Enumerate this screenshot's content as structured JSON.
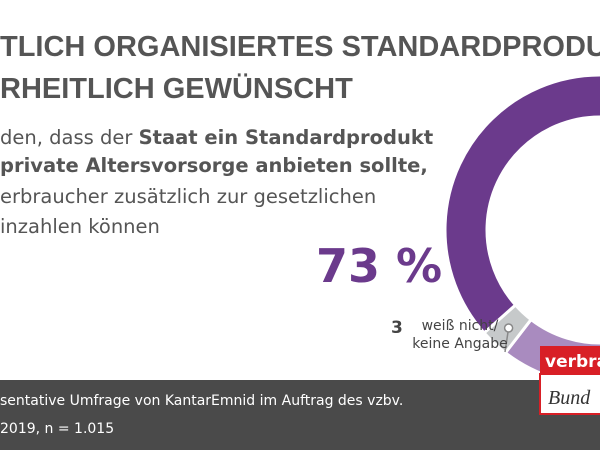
{
  "header": {
    "title": [
      "TLICH ORGANISIERTES STANDARDPRODUK",
      "RHEITLICH GEWÜNSCHT"
    ],
    "intro": [
      [
        "den, dass der ",
        "Staat ein Standardprodukt"
      ],
      [
        "private Altersvorsorge anbieten sollte,"
      ],
      [
        "erbraucher zusätzlich zur gesetzlichen"
      ],
      [
        "inzahlen können"
      ]
    ]
  },
  "chart_data": {
    "type": "donut",
    "categories": [
      null,
      null,
      "weiß nicht/\nkeine Angabe"
    ],
    "values": [
      73,
      24,
      3
    ],
    "value_labels": [
      "73 %",
      null,
      "3"
    ],
    "colors": [
      "#6b3a8c",
      "#a98bbf",
      "#c6c9ca"
    ]
  },
  "footer": {
    "source": "sentative Umfrage von KantarEmnid im Auftrag des vzbv.",
    "note": "2019, n = 1.015"
  },
  "logo": {
    "top": "verbrauch",
    "bottom": "Bund"
  }
}
